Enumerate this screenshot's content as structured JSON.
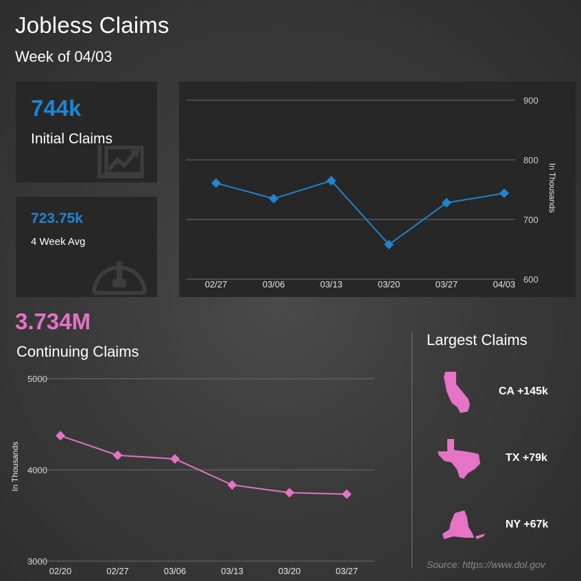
{
  "header": {
    "title": "Jobless Claims",
    "subtitle": "Week of 04/03"
  },
  "initial": {
    "value": "744k",
    "label": "Initial Claims"
  },
  "avg": {
    "value": "723.75k",
    "label": "4 Week Avg"
  },
  "continuing": {
    "value": "3.734M",
    "label": "Continuing Claims"
  },
  "largest": {
    "title": "Largest Claims",
    "states": [
      {
        "icon": "california-icon",
        "label": "CA +145k"
      },
      {
        "icon": "texas-icon",
        "label": "TX +79k"
      },
      {
        "icon": "new-york-icon",
        "label": "NY +67k"
      }
    ]
  },
  "source": "Source: https://www.dol.gov",
  "colors": {
    "blue": "#1f84d2",
    "pink": "#e573c6"
  },
  "chart_data": [
    {
      "type": "line",
      "categories": [
        "02/27",
        "03/06",
        "03/13",
        "03/20",
        "03/27",
        "04/03"
      ],
      "values": [
        761,
        735,
        765,
        658,
        728,
        744
      ],
      "ylabel": "In Thousands",
      "yticks": [
        "900",
        "800",
        "700",
        "600"
      ],
      "ylim": [
        600,
        900
      ],
      "grid": true,
      "color": "#1f84d2"
    },
    {
      "type": "line",
      "categories": [
        "02/20",
        "02/27",
        "03/06",
        "03/13",
        "03/20",
        "03/27"
      ],
      "values": [
        4375,
        4160,
        4120,
        3835,
        3750,
        3734
      ],
      "ylabel": "In Thousands",
      "yticks": [
        "5000",
        "4000",
        "3000"
      ],
      "ylim": [
        3000,
        5000
      ],
      "grid": true,
      "color": "#e573c6"
    }
  ]
}
